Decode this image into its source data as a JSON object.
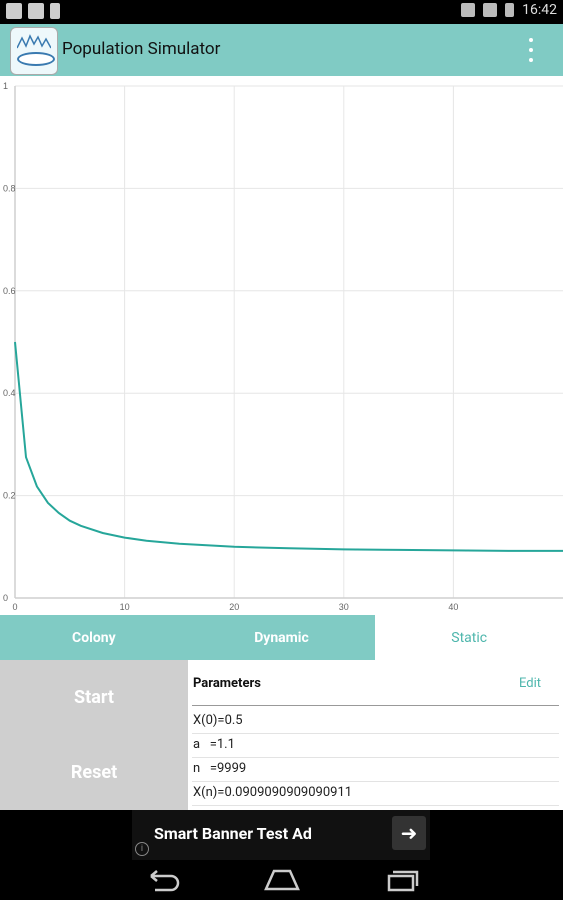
{
  "status_bar": {
    "time": "16:42",
    "icons": [
      "picture-icon",
      "checkbox-icon",
      "sd-card-icon",
      "network-icon",
      "wifi-icon",
      "battery-icon"
    ]
  },
  "app": {
    "title": "Population Simulator",
    "icon": "petri-dish-icon",
    "accent": "#80CBC4"
  },
  "chart_data": {
    "type": "line",
    "x": [
      0,
      1,
      2,
      3,
      4,
      5,
      6,
      8,
      10,
      12,
      15,
      20,
      25,
      30,
      35,
      40,
      45,
      50
    ],
    "y": [
      0.5,
      0.275,
      0.218,
      0.186,
      0.166,
      0.151,
      0.141,
      0.127,
      0.118,
      0.112,
      0.106,
      0.1,
      0.097,
      0.095,
      0.094,
      0.093,
      0.092,
      0.092
    ],
    "xlim": [
      0,
      50
    ],
    "ylim": [
      0,
      1
    ],
    "xticks": [
      0,
      10,
      20,
      30,
      40
    ],
    "yticks": [
      0,
      0.2,
      0.4,
      0.6,
      0.8,
      1
    ],
    "grid": true,
    "line_color": "#26A69A"
  },
  "tabs": [
    {
      "label": "Colony",
      "active": false
    },
    {
      "label": "Dynamic",
      "active": false
    },
    {
      "label": "Static",
      "active": true
    }
  ],
  "controls": {
    "start_label": "Start",
    "reset_label": "Reset"
  },
  "params": {
    "heading": "Parameters",
    "edit_label": "Edit",
    "rows": [
      "X(0)=0.5",
      "a   =1.1",
      "n   =9999",
      "X(n)=0.0909090909090911"
    ]
  },
  "ad": {
    "text": "Smart Banner Test Ad",
    "info_glyph": "i",
    "arrow_glyph": "➜"
  },
  "nav": [
    "back-icon",
    "home-icon",
    "recents-icon"
  ]
}
